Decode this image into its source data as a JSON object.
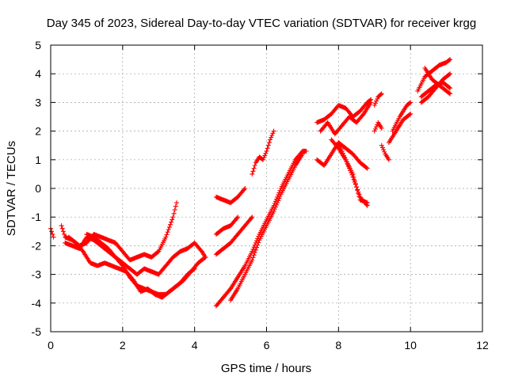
{
  "chart_data": {
    "type": "scatter",
    "title": "Day 345 of 2023, Sidereal Day-to-day VTEC variation (SDTVAR) for receiver krgg",
    "xlabel": "GPS time / hours",
    "ylabel": "SDTVAR / TECUs",
    "xlim": [
      0,
      12
    ],
    "ylim": [
      -5,
      5
    ],
    "xticks": [
      0,
      2,
      4,
      6,
      8,
      10,
      12
    ],
    "yticks": [
      -5,
      -4,
      -3,
      -2,
      -1,
      0,
      1,
      2,
      3,
      4,
      5
    ],
    "grid": true,
    "marker": "plus",
    "color": "#ff0000",
    "segments": [
      [
        [
          0.0,
          -1.4
        ],
        [
          0.05,
          -1.6
        ],
        [
          0.08,
          -1.7
        ]
      ],
      [
        [
          0.3,
          -1.3
        ],
        [
          0.4,
          -1.7
        ],
        [
          0.6,
          -1.8
        ],
        [
          0.8,
          -2.0
        ],
        [
          1.0,
          -1.9
        ],
        [
          1.2,
          -1.6
        ],
        [
          1.4,
          -1.7
        ],
        [
          1.6,
          -1.8
        ],
        [
          1.8,
          -1.9
        ],
        [
          2.0,
          -2.2
        ],
        [
          2.2,
          -2.5
        ],
        [
          2.4,
          -2.4
        ],
        [
          2.6,
          -2.3
        ],
        [
          2.8,
          -2.4
        ],
        [
          3.0,
          -2.2
        ],
        [
          3.2,
          -1.7
        ],
        [
          3.4,
          -1.0
        ],
        [
          3.5,
          -0.5
        ]
      ],
      [
        [
          0.4,
          -1.9
        ],
        [
          0.6,
          -2.0
        ],
        [
          0.8,
          -2.1
        ],
        [
          1.0,
          -1.7
        ],
        [
          1.2,
          -1.8
        ],
        [
          1.4,
          -2.0
        ],
        [
          1.6,
          -2.2
        ],
        [
          1.8,
          -2.4
        ],
        [
          2.0,
          -2.7
        ],
        [
          2.2,
          -3.1
        ],
        [
          2.4,
          -3.4
        ],
        [
          2.6,
          -3.5
        ],
        [
          2.8,
          -3.6
        ],
        [
          3.0,
          -3.7
        ],
        [
          3.2,
          -3.7
        ],
        [
          3.4,
          -3.5
        ],
        [
          3.6,
          -3.3
        ],
        [
          3.8,
          -3.0
        ],
        [
          4.0,
          -2.8
        ]
      ],
      [
        [
          0.5,
          -1.7
        ],
        [
          0.7,
          -1.9
        ],
        [
          0.9,
          -2.2
        ],
        [
          1.1,
          -2.6
        ],
        [
          1.3,
          -2.7
        ],
        [
          1.5,
          -2.6
        ],
        [
          1.7,
          -2.7
        ],
        [
          1.9,
          -2.8
        ],
        [
          2.1,
          -2.9
        ],
        [
          2.3,
          -3.2
        ],
        [
          2.5,
          -3.6
        ],
        [
          2.7,
          -3.5
        ],
        [
          2.9,
          -3.7
        ],
        [
          3.1,
          -3.8
        ],
        [
          3.3,
          -3.6
        ],
        [
          3.5,
          -3.4
        ],
        [
          3.7,
          -3.2
        ],
        [
          3.9,
          -2.9
        ],
        [
          4.1,
          -2.6
        ],
        [
          4.3,
          -2.4
        ]
      ],
      [
        [
          1.0,
          -1.6
        ],
        [
          1.2,
          -1.7
        ],
        [
          1.4,
          -1.9
        ],
        [
          1.6,
          -2.1
        ],
        [
          1.8,
          -2.4
        ],
        [
          2.0,
          -2.6
        ],
        [
          2.2,
          -2.8
        ],
        [
          2.4,
          -3.0
        ],
        [
          2.6,
          -2.8
        ],
        [
          2.8,
          -2.9
        ],
        [
          3.0,
          -3.0
        ],
        [
          3.2,
          -2.7
        ],
        [
          3.4,
          -2.4
        ],
        [
          3.6,
          -2.2
        ],
        [
          3.8,
          -2.1
        ],
        [
          4.0,
          -1.9
        ],
        [
          4.2,
          -2.2
        ],
        [
          4.3,
          -2.4
        ]
      ],
      [
        [
          4.6,
          -0.3
        ],
        [
          4.8,
          -0.4
        ],
        [
          5.0,
          -0.5
        ],
        [
          5.2,
          -0.3
        ],
        [
          5.4,
          0.0
        ]
      ],
      [
        [
          4.6,
          -1.6
        ],
        [
          4.8,
          -1.4
        ],
        [
          5.0,
          -1.3
        ],
        [
          5.2,
          -1.0
        ]
      ],
      [
        [
          4.6,
          -2.3
        ],
        [
          4.8,
          -2.1
        ],
        [
          5.0,
          -1.9
        ],
        [
          5.2,
          -1.6
        ],
        [
          5.4,
          -1.3
        ],
        [
          5.6,
          -1.0
        ]
      ],
      [
        [
          4.6,
          -4.1
        ],
        [
          4.8,
          -3.8
        ],
        [
          5.0,
          -3.5
        ],
        [
          5.2,
          -3.1
        ],
        [
          5.4,
          -2.7
        ],
        [
          5.6,
          -2.2
        ],
        [
          5.8,
          -1.6
        ],
        [
          6.0,
          -1.1
        ],
        [
          6.2,
          -0.6
        ],
        [
          6.4,
          0.0
        ],
        [
          6.6,
          0.5
        ],
        [
          6.8,
          1.0
        ],
        [
          7.0,
          1.3
        ],
        [
          7.1,
          1.3
        ]
      ],
      [
        [
          5.0,
          -3.9
        ],
        [
          5.2,
          -3.5
        ],
        [
          5.4,
          -3.0
        ],
        [
          5.6,
          -2.5
        ],
        [
          5.8,
          -1.8
        ],
        [
          6.0,
          -1.3
        ],
        [
          6.2,
          -0.8
        ],
        [
          6.4,
          -0.2
        ],
        [
          6.6,
          0.3
        ],
        [
          6.8,
          0.8
        ],
        [
          7.0,
          1.2
        ]
      ],
      [
        [
          5.6,
          0.5
        ],
        [
          5.7,
          0.9
        ],
        [
          5.8,
          1.1
        ],
        [
          5.9,
          1.0
        ],
        [
          6.0,
          1.3
        ],
        [
          6.1,
          1.7
        ],
        [
          6.2,
          2.0
        ]
      ],
      [
        [
          7.4,
          1.0
        ],
        [
          7.6,
          0.8
        ],
        [
          7.8,
          1.2
        ],
        [
          8.0,
          1.6
        ],
        [
          8.2,
          1.4
        ],
        [
          8.4,
          1.2
        ],
        [
          8.6,
          0.9
        ],
        [
          8.8,
          0.7
        ]
      ],
      [
        [
          7.4,
          2.3
        ],
        [
          7.6,
          2.4
        ],
        [
          7.8,
          2.6
        ],
        [
          8.0,
          2.9
        ],
        [
          8.2,
          2.8
        ],
        [
          8.4,
          2.5
        ],
        [
          8.6,
          2.7
        ],
        [
          8.8,
          3.0
        ],
        [
          8.9,
          3.1
        ]
      ],
      [
        [
          7.5,
          2.0
        ],
        [
          7.7,
          2.3
        ],
        [
          7.9,
          1.9
        ],
        [
          8.1,
          2.2
        ],
        [
          8.3,
          2.5
        ],
        [
          8.5,
          2.3
        ],
        [
          8.7,
          2.6
        ],
        [
          8.9,
          3.0
        ]
      ],
      [
        [
          7.8,
          1.7
        ],
        [
          8.0,
          1.4
        ],
        [
          8.2,
          1.0
        ],
        [
          8.4,
          0.4
        ],
        [
          8.6,
          -0.3
        ],
        [
          8.8,
          -0.6
        ]
      ],
      [
        [
          8.0,
          1.6
        ],
        [
          8.2,
          1.0
        ],
        [
          8.4,
          0.5
        ],
        [
          8.6,
          -0.4
        ],
        [
          8.8,
          -0.5
        ]
      ],
      [
        [
          9.0,
          2.0
        ],
        [
          9.1,
          2.3
        ],
        [
          9.2,
          2.1
        ]
      ],
      [
        [
          9.0,
          2.9
        ],
        [
          9.1,
          3.2
        ],
        [
          9.2,
          3.3
        ]
      ],
      [
        [
          9.2,
          1.5
        ],
        [
          9.3,
          1.2
        ],
        [
          9.4,
          1.0
        ]
      ],
      [
        [
          9.4,
          1.6
        ],
        [
          9.6,
          2.0
        ],
        [
          9.8,
          2.4
        ],
        [
          10.0,
          2.6
        ]
      ],
      [
        [
          9.5,
          2.0
        ],
        [
          9.7,
          2.5
        ],
        [
          9.9,
          2.9
        ],
        [
          10.0,
          3.0
        ]
      ],
      [
        [
          10.2,
          3.4
        ],
        [
          10.4,
          3.9
        ],
        [
          10.6,
          4.1
        ],
        [
          10.8,
          4.3
        ],
        [
          11.0,
          4.4
        ],
        [
          11.1,
          4.5
        ]
      ],
      [
        [
          10.3,
          3.2
        ],
        [
          10.5,
          3.4
        ],
        [
          10.7,
          3.6
        ],
        [
          10.9,
          3.7
        ],
        [
          11.1,
          3.5
        ]
      ],
      [
        [
          10.4,
          4.2
        ],
        [
          10.6,
          3.8
        ],
        [
          10.8,
          3.6
        ],
        [
          11.0,
          3.4
        ],
        [
          11.1,
          3.3
        ]
      ],
      [
        [
          10.3,
          3.0
        ],
        [
          10.5,
          3.2
        ],
        [
          10.7,
          3.5
        ],
        [
          10.9,
          3.8
        ],
        [
          11.1,
          4.0
        ]
      ]
    ]
  }
}
